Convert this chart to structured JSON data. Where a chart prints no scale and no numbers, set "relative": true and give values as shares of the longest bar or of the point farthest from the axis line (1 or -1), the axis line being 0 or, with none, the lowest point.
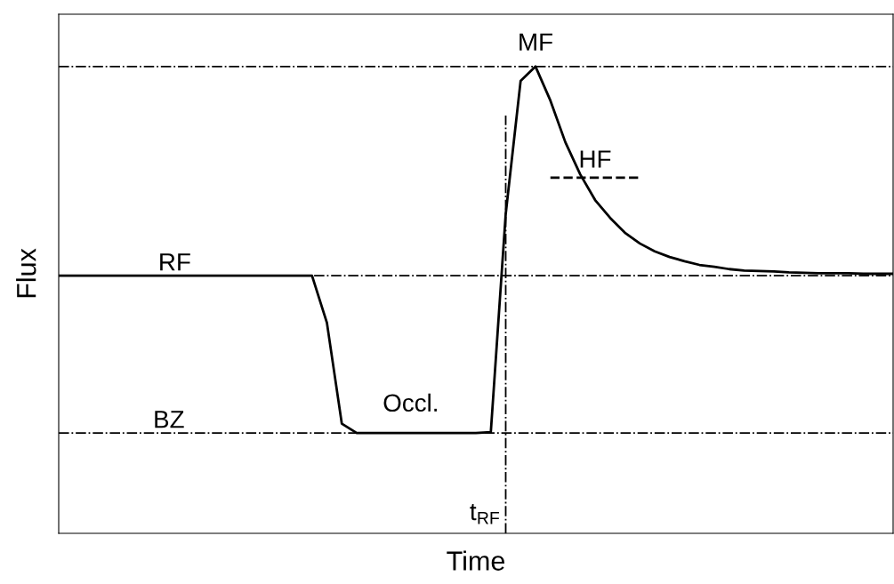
{
  "chart_data": {
    "type": "line",
    "relative": true,
    "xlabel": "Time",
    "ylabel": "Flux",
    "legend": false,
    "marker": "none",
    "categories": [
      null,
      null,
      null,
      null,
      null,
      null,
      null,
      null,
      null,
      null,
      null,
      null,
      null,
      null,
      null,
      null,
      null,
      null,
      null,
      null,
      null,
      null,
      null,
      null,
      null,
      null,
      null,
      null,
      null,
      null,
      null,
      null,
      null,
      null,
      null,
      null,
      null,
      null,
      null,
      null,
      null,
      null,
      null,
      null,
      null,
      null,
      null,
      null,
      null,
      null,
      null,
      null,
      null,
      null,
      null,
      null,
      null
    ],
    "series": [
      {
        "color": "#000000",
        "line_style": "solid",
        "values": [
          0.552,
          0.552,
          0.552,
          0.552,
          0.552,
          0.552,
          0.552,
          0.552,
          0.552,
          0.552,
          0.552,
          0.552,
          0.552,
          0.552,
          0.552,
          0.552,
          0.552,
          0.552,
          0.451,
          0.235,
          0.215,
          0.215,
          0.215,
          0.215,
          0.215,
          0.215,
          0.215,
          0.215,
          0.215,
          0.217,
          0.684,
          0.969,
          1,
          0.927,
          0.838,
          0.769,
          0.714,
          0.676,
          0.644,
          0.621,
          0.604,
          0.592,
          0.583,
          0.575,
          0.571,
          0.566,
          0.563,
          0.562,
          0.561,
          0.559,
          0.558,
          0.557,
          0.557,
          0.557,
          0.556,
          0.556,
          0.556
        ]
      },
      {
        "name": "HF",
        "color": "#000000",
        "line_style": "dashed",
        "values": [
          null,
          null,
          null,
          null,
          null,
          null,
          null,
          null,
          null,
          null,
          null,
          null,
          null,
          null,
          null,
          null,
          null,
          null,
          null,
          null,
          null,
          null,
          null,
          null,
          null,
          null,
          null,
          null,
          null,
          null,
          null,
          null,
          null,
          0.762,
          0.762,
          0.762,
          0.762,
          0.762,
          0.762,
          0.762,
          null,
          null,
          null,
          null,
          null,
          null,
          null,
          null,
          null,
          null,
          null,
          null,
          null,
          null,
          null,
          null,
          null
        ]
      }
    ],
    "ref_lines": [
      {
        "axis": "y",
        "value": 1,
        "label": "MF",
        "color": "#000000",
        "line_style": "dashdot"
      },
      {
        "axis": "y",
        "value": 0.552,
        "label": "RF",
        "color": "#000000",
        "line_style": "dashdot"
      },
      {
        "axis": "y",
        "value": 0.215,
        "label": "BZ",
        "color": "#000000",
        "line_style": "dashdot"
      }
    ],
    "annotations": [
      "Occl.",
      "t$_{RF}$"
    ]
  }
}
